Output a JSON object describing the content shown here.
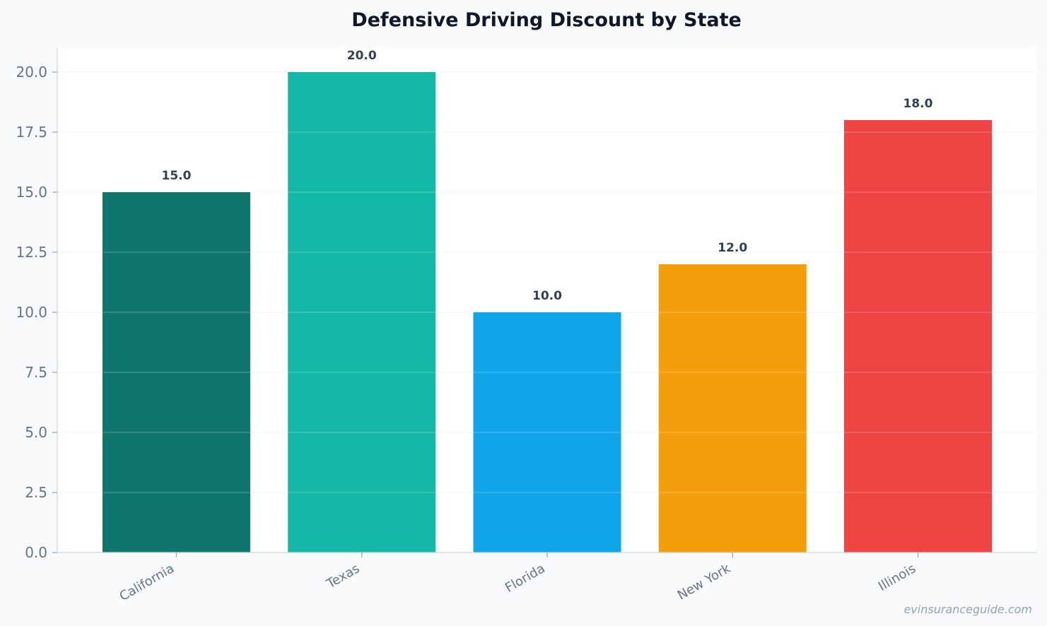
{
  "chart_data": {
    "type": "bar",
    "title": "Defensive Driving Discount by State",
    "xlabel": "",
    "ylabel": "",
    "categories": [
      "California",
      "Texas",
      "Florida",
      "New York",
      "Illinois"
    ],
    "values": [
      15.0,
      20.0,
      10.0,
      12.0,
      18.0
    ],
    "data_labels": [
      "15.0",
      "20.0",
      "10.0",
      "12.0",
      "18.0"
    ],
    "colors": [
      "#0f766e",
      "#14b8a6",
      "#0ea5e9",
      "#f59e0b",
      "#ef4444"
    ],
    "ylim": [
      0,
      21
    ],
    "yticks": [
      0,
      2.5,
      5,
      7.5,
      10,
      12.5,
      15,
      17.5,
      20
    ],
    "ytick_labels": [
      "0.0",
      "2.5",
      "5.0",
      "7.5",
      "10.0",
      "12.5",
      "15.0",
      "17.5",
      "20.0"
    ],
    "grid": true,
    "legend": "none"
  },
  "watermark": "evinsuranceguide.com",
  "colors": {
    "background": "#f8fafc",
    "plot_background": "#ffffff",
    "title": "#0f172a",
    "tick_text": "#64748b",
    "data_label_text": "#334155",
    "axis": "#cbd5e1",
    "grid": "#e2e8f0"
  }
}
